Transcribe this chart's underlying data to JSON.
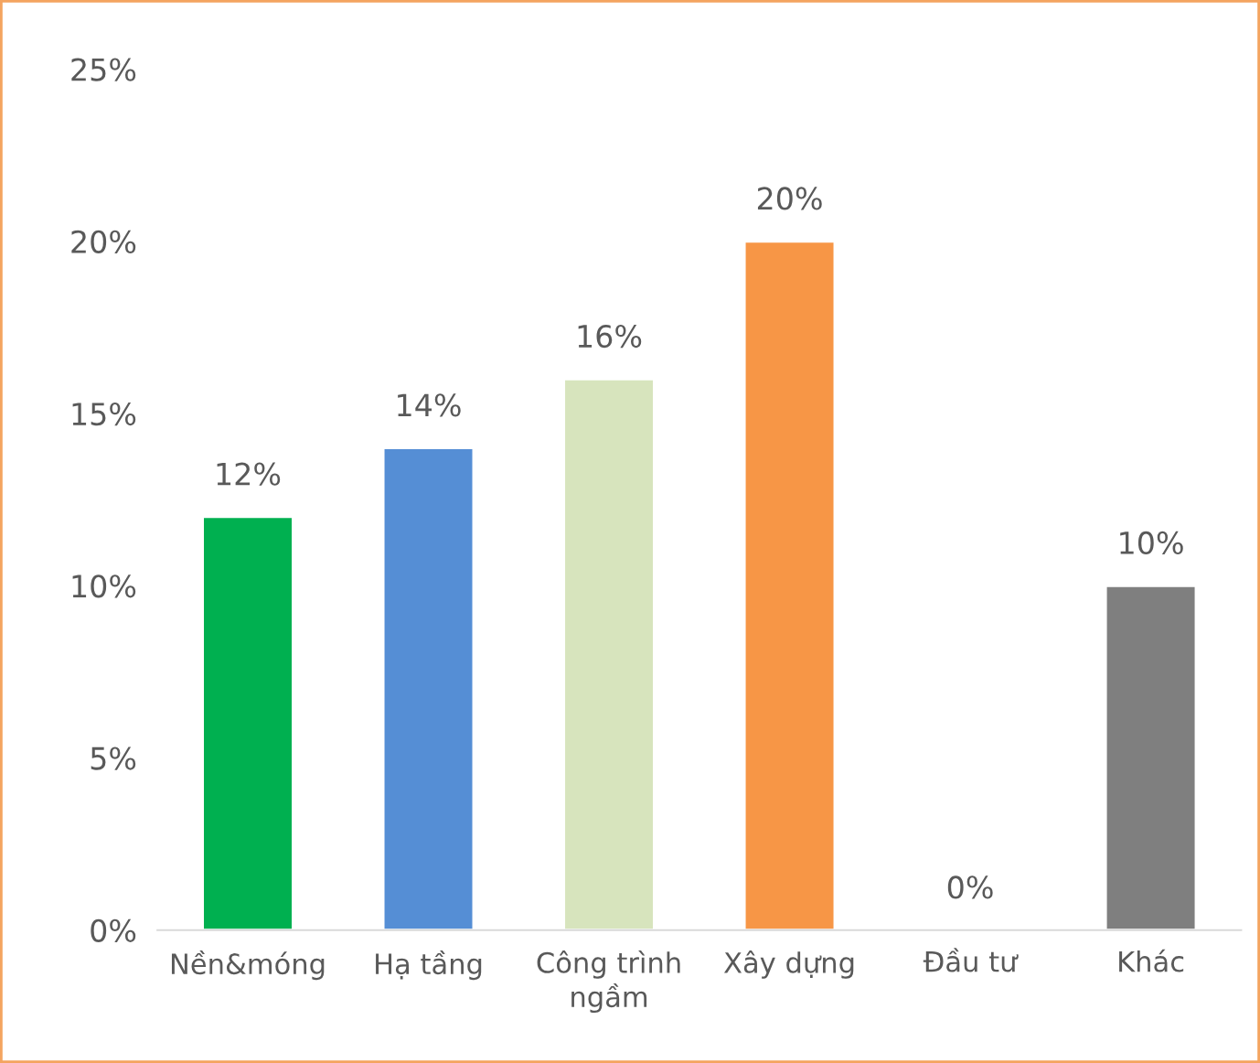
{
  "chart_data": {
    "type": "bar",
    "categories": [
      "Nền&móng",
      "Hạ tầng",
      "Công trình\nngầm",
      "Xây dựng",
      "Đầu tư",
      "Khác"
    ],
    "values": [
      12,
      14,
      16,
      20,
      0,
      10
    ],
    "colors": [
      "#00b050",
      "#558ed5",
      "#d7e4bd",
      "#f79646",
      null,
      "#7f7f7f"
    ],
    "value_labels": [
      "12%",
      "14%",
      "16%",
      "20%",
      "0%",
      "10%"
    ],
    "ylim": [
      0,
      25
    ],
    "yticks": [
      {
        "value": 0,
        "label": "0%"
      },
      {
        "value": 5,
        "label": "5%"
      },
      {
        "value": 10,
        "label": "10%"
      },
      {
        "value": 15,
        "label": "15%"
      },
      {
        "value": 20,
        "label": "20%"
      },
      {
        "value": 25,
        "label": "25%"
      }
    ],
    "grid": false,
    "legend": false
  }
}
